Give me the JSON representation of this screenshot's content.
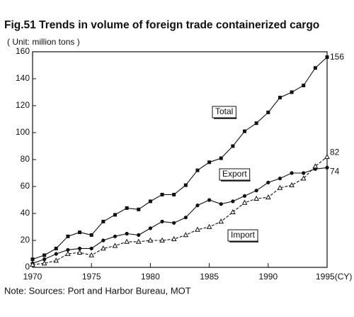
{
  "chart_data": {
    "type": "line",
    "title": "Fig.51 Trends in volume of foreign trade containerized cargo",
    "subtitle": "( Unit: million tons )",
    "note": "Note: Sources: Port and Harbor Bureau, MOT",
    "x": [
      1970,
      1971,
      1972,
      1973,
      1974,
      1975,
      1976,
      1977,
      1978,
      1979,
      1980,
      1981,
      1982,
      1983,
      1984,
      1985,
      1986,
      1987,
      1988,
      1989,
      1990,
      1991,
      1992,
      1993,
      1994,
      1995
    ],
    "series": [
      {
        "name": "Total",
        "color": "#111111",
        "marker": "square",
        "dashed": false,
        "values": [
          6,
          9,
          14,
          23,
          26,
          24,
          34,
          39,
          44,
          43,
          49,
          54,
          54,
          61,
          72,
          78,
          81,
          90,
          101,
          107,
          115,
          126,
          130,
          135,
          148,
          156
        ]
      },
      {
        "name": "Export",
        "color": "#111111",
        "marker": "circle",
        "dashed": false,
        "values": [
          3,
          6,
          10,
          13,
          14,
          14,
          20,
          23,
          25,
          24,
          29,
          34,
          33,
          37,
          46,
          50,
          47,
          49,
          53,
          57,
          63,
          66,
          70,
          70,
          73,
          74
        ]
      },
      {
        "name": "Import",
        "color": "#111111",
        "marker": "triangle",
        "dashed": true,
        "values": [
          2,
          3,
          5,
          10,
          11,
          9,
          14,
          16,
          19,
          19,
          20,
          20,
          21,
          24,
          28,
          30,
          34,
          41,
          48,
          51,
          52,
          59,
          61,
          66,
          75,
          82
        ]
      }
    ],
    "xlim": [
      1970,
      1995
    ],
    "xticks": [
      1970,
      1975,
      1980,
      1985,
      1990,
      {
        "value": 1995,
        "label": "1995(CY)"
      }
    ],
    "ylim": [
      0,
      160
    ],
    "yticks": [
      0,
      20,
      40,
      60,
      80,
      100,
      120,
      140,
      160
    ],
    "grid": false
  }
}
